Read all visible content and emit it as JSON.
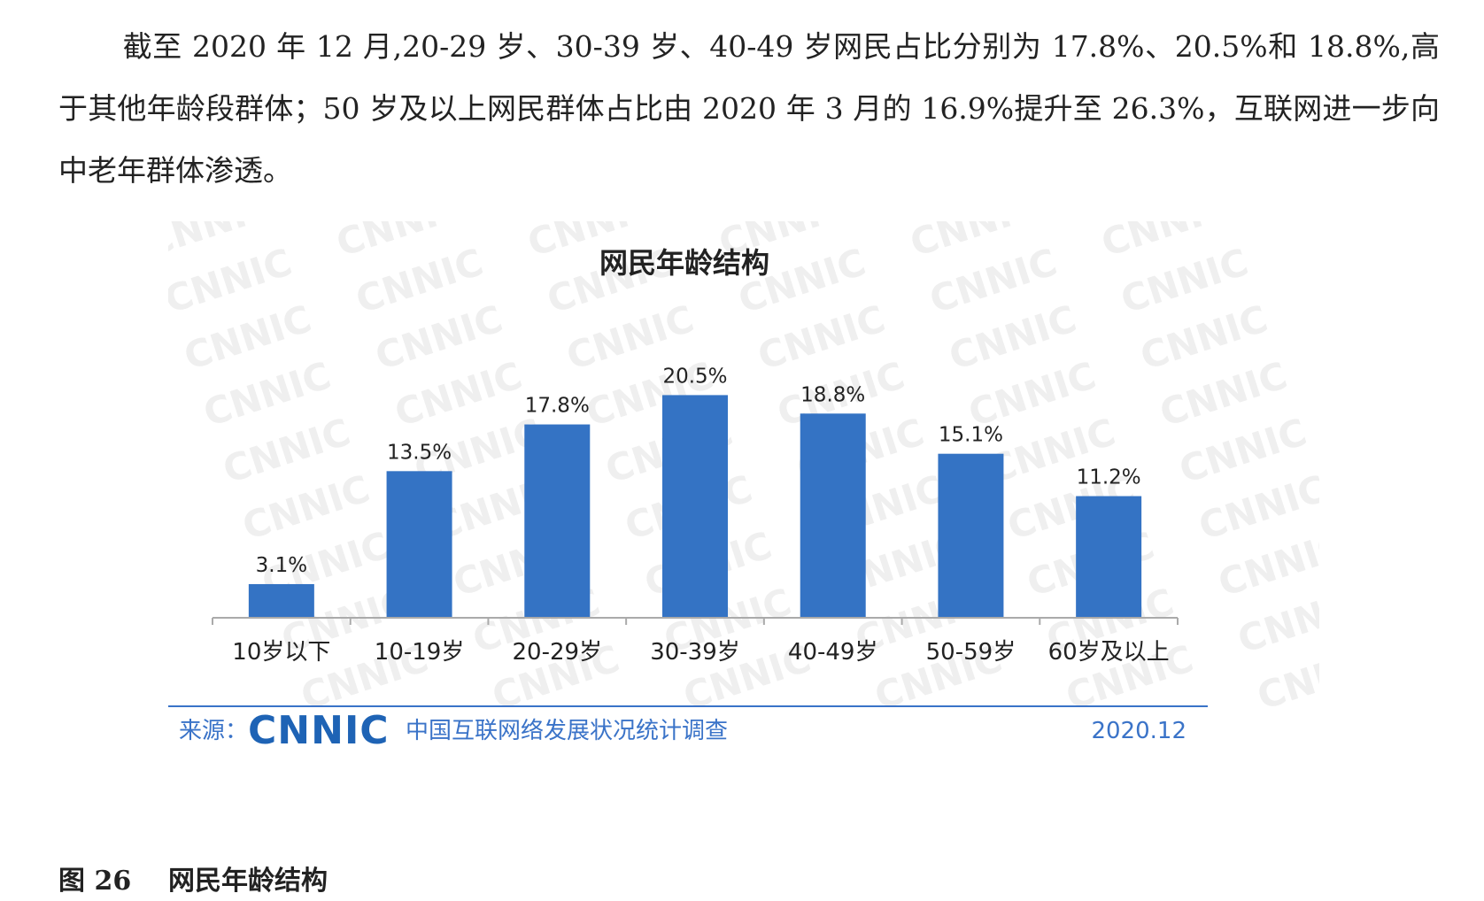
{
  "text": {
    "paragraph": "截至 2020 年 12 月,20-29 岁、30-39 岁、40-49 岁网民占比分别为 17.8%、20.5%和 18.8%,高于其他年龄段群体；50 岁及以上网民群体占比由 2020 年 3 月的 16.9%提升至 26.3%，互联网进一步向中老年群体渗透。"
  },
  "caption": {
    "number": "图 26",
    "title": "网民年龄结构"
  },
  "footer": {
    "source_label": "来源：",
    "logo_text": "CNNIC",
    "survey_name": "中国互联网络发展状况统计调查",
    "date": "2020.12"
  },
  "watermark": "CNNIC",
  "colors": {
    "bar": "#3473c4",
    "axis": "#aaaaaa",
    "footer_blue": "#3a73c8",
    "logo_blue": "#1e63b5",
    "watermark": "#efefef"
  },
  "chart_data": {
    "type": "bar",
    "title": "网民年龄结构",
    "categories": [
      "10岁以下",
      "10-19岁",
      "20-29岁",
      "30-39岁",
      "40-49岁",
      "50-59岁",
      "60岁及以上"
    ],
    "values": [
      3.1,
      13.5,
      17.8,
      20.5,
      18.8,
      15.1,
      11.2
    ],
    "value_labels": [
      "3.1%",
      "13.5%",
      "17.8%",
      "20.5%",
      "18.8%",
      "15.1%",
      "11.2%"
    ],
    "xlabel": "",
    "ylabel": "",
    "unit": "%",
    "ylim": [
      0,
      22
    ],
    "grid": false,
    "legend": "none"
  }
}
